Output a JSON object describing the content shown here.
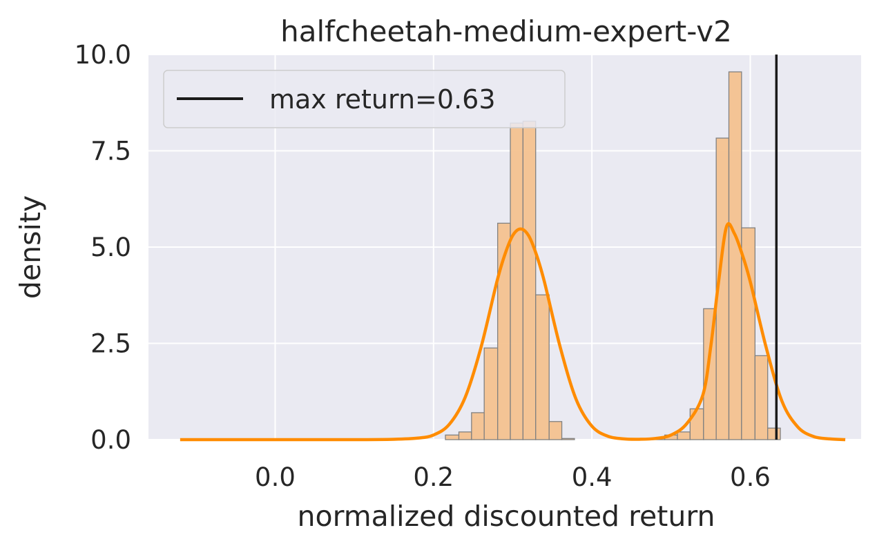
{
  "chart_data": {
    "type": "bar",
    "title": "halfcheetah-medium-expert-v2",
    "xlabel": "normalized discounted return",
    "ylabel": "density",
    "xlim": [
      -0.16,
      0.74
    ],
    "ylim": [
      0,
      10
    ],
    "xticks": [
      0.0,
      0.2,
      0.4,
      0.6
    ],
    "xtick_labels": [
      "0.0",
      "0.2",
      "0.4",
      "0.6"
    ],
    "yticks": [
      0.0,
      2.5,
      5.0,
      7.5,
      10.0
    ],
    "ytick_labels": [
      "0.0",
      "2.5",
      "5.0",
      "7.5",
      "10.0"
    ],
    "grid": true,
    "legend": {
      "placement": "upper left",
      "entries": [
        {
          "label": "max return=0.63",
          "color": "#1a1a1a",
          "style": "line"
        }
      ]
    },
    "histogram": {
      "bin_edges": [
        0.215,
        0.232,
        0.248,
        0.264,
        0.281,
        0.297,
        0.313,
        0.329,
        0.346,
        0.362,
        0.378,
        0.394,
        0.411,
        0.427,
        0.443,
        0.459,
        0.476,
        0.492,
        0.508,
        0.524,
        0.541,
        0.557,
        0.573,
        0.589,
        0.606,
        0.622,
        0.638
      ],
      "densities": [
        0.12,
        0.2,
        0.7,
        2.38,
        5.62,
        8.22,
        8.27,
        3.76,
        0.47,
        0.03,
        0.0,
        0.0,
        0.0,
        0.0,
        0.0,
        0.03,
        0.03,
        0.12,
        0.2,
        0.8,
        3.4,
        7.83,
        9.55,
        5.5,
        2.18,
        0.3
      ],
      "fill_color": "#f4c28f",
      "edge_color": "#808080"
    },
    "kde": {
      "color": "#ff8c00",
      "x": [
        -0.12,
        0.0,
        0.1,
        0.15,
        0.18,
        0.2,
        0.22,
        0.24,
        0.26,
        0.28,
        0.29,
        0.3,
        0.31,
        0.32,
        0.33,
        0.34,
        0.36,
        0.38,
        0.4,
        0.42,
        0.44,
        0.46,
        0.48,
        0.5,
        0.52,
        0.54,
        0.55,
        0.56,
        0.57,
        0.58,
        0.59,
        0.6,
        0.62,
        0.64,
        0.66,
        0.68,
        0.7,
        0.72
      ],
      "y": [
        0.0,
        0.0,
        0.0,
        0.01,
        0.04,
        0.12,
        0.4,
        1.1,
        2.4,
        4.1,
        4.8,
        5.3,
        5.47,
        5.3,
        4.8,
        4.1,
        2.4,
        1.05,
        0.35,
        0.09,
        0.02,
        0.01,
        0.03,
        0.12,
        0.42,
        1.15,
        2.4,
        4.1,
        5.53,
        5.35,
        4.8,
        4.1,
        2.4,
        1.0,
        0.33,
        0.08,
        0.02,
        0.0
      ]
    },
    "vline": {
      "x": 0.633,
      "label": "max return=0.63",
      "color": "#1a1a1a"
    }
  }
}
